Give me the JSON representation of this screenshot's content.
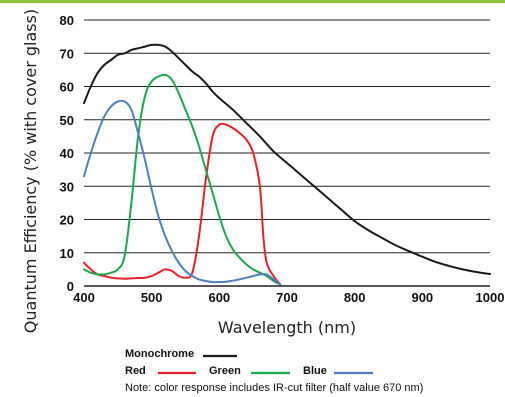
{
  "chart_data": {
    "type": "line",
    "xlabel": "Wavelength (nm)",
    "ylabel": "Quantum Efficiency (% with cover glass)",
    "xlim": [
      400,
      1000
    ],
    "ylim": [
      0,
      80
    ],
    "xticks": [
      "400",
      "500",
      "600",
      "700",
      "800",
      "900",
      "1000"
    ],
    "yticks": [
      "0",
      "10",
      "20",
      "30",
      "40",
      "50",
      "60",
      "70",
      "80"
    ],
    "grid": "horizontal",
    "series": [
      {
        "name": "Monochrome",
        "color": "#1a1a1a",
        "points": [
          [
            400,
            55
          ],
          [
            410,
            60
          ],
          [
            420,
            64
          ],
          [
            430,
            66.5
          ],
          [
            440,
            68
          ],
          [
            450,
            69.5
          ],
          [
            460,
            70
          ],
          [
            470,
            71
          ],
          [
            480,
            71.5
          ],
          [
            490,
            72
          ],
          [
            500,
            72.5
          ],
          [
            510,
            72.5
          ],
          [
            520,
            72
          ],
          [
            530,
            70.5
          ],
          [
            540,
            68.5
          ],
          [
            550,
            66.5
          ],
          [
            560,
            64.5
          ],
          [
            570,
            63
          ],
          [
            580,
            61
          ],
          [
            590,
            58.5
          ],
          [
            600,
            56.5
          ],
          [
            620,
            53
          ],
          [
            640,
            49
          ],
          [
            660,
            45
          ],
          [
            680,
            40.5
          ],
          [
            700,
            37
          ],
          [
            720,
            33.5
          ],
          [
            740,
            30
          ],
          [
            760,
            26.5
          ],
          [
            780,
            23
          ],
          [
            800,
            19.5
          ],
          [
            820,
            16.8
          ],
          [
            840,
            14.5
          ],
          [
            860,
            12.3
          ],
          [
            880,
            10.5
          ],
          [
            900,
            8.8
          ],
          [
            920,
            7.2
          ],
          [
            940,
            6
          ],
          [
            960,
            5
          ],
          [
            980,
            4.2
          ],
          [
            1000,
            3.6
          ]
        ]
      },
      {
        "name": "Red",
        "color": "#e8202a",
        "points": [
          [
            400,
            7
          ],
          [
            410,
            5
          ],
          [
            420,
            3.5
          ],
          [
            430,
            3
          ],
          [
            440,
            2.5
          ],
          [
            450,
            2.3
          ],
          [
            460,
            2.2
          ],
          [
            470,
            2.3
          ],
          [
            480,
            2.4
          ],
          [
            490,
            2.5
          ],
          [
            500,
            3
          ],
          [
            510,
            4
          ],
          [
            520,
            5
          ],
          [
            530,
            4.5
          ],
          [
            540,
            3
          ],
          [
            550,
            2.5
          ],
          [
            560,
            4
          ],
          [
            570,
            15
          ],
          [
            580,
            32
          ],
          [
            590,
            45
          ],
          [
            600,
            48.5
          ],
          [
            610,
            48.5
          ],
          [
            620,
            47.5
          ],
          [
            630,
            46
          ],
          [
            640,
            44
          ],
          [
            650,
            40
          ],
          [
            660,
            30
          ],
          [
            665,
            15
          ],
          [
            670,
            7
          ],
          [
            680,
            3
          ],
          [
            690,
            0.5
          ]
        ]
      },
      {
        "name": "Green",
        "color": "#1aa84a",
        "points": [
          [
            400,
            5
          ],
          [
            410,
            4
          ],
          [
            420,
            3.5
          ],
          [
            430,
            3.5
          ],
          [
            440,
            4
          ],
          [
            450,
            5
          ],
          [
            460,
            9
          ],
          [
            470,
            25
          ],
          [
            480,
            45
          ],
          [
            490,
            57
          ],
          [
            500,
            61.5
          ],
          [
            510,
            63
          ],
          [
            520,
            63.5
          ],
          [
            530,
            62
          ],
          [
            540,
            58
          ],
          [
            550,
            53
          ],
          [
            560,
            48
          ],
          [
            570,
            42
          ],
          [
            580,
            35
          ],
          [
            590,
            28
          ],
          [
            600,
            21
          ],
          [
            610,
            15
          ],
          [
            620,
            11
          ],
          [
            630,
            8.5
          ],
          [
            640,
            6.5
          ],
          [
            650,
            5
          ],
          [
            660,
            4
          ],
          [
            670,
            3
          ],
          [
            680,
            1.5
          ],
          [
            690,
            0.5
          ]
        ]
      },
      {
        "name": "Blue",
        "color": "#4f7fc0",
        "points": [
          [
            400,
            33
          ],
          [
            410,
            40
          ],
          [
            420,
            46
          ],
          [
            430,
            51
          ],
          [
            440,
            54
          ],
          [
            450,
            55.5
          ],
          [
            460,
            55.5
          ],
          [
            470,
            53
          ],
          [
            480,
            46
          ],
          [
            490,
            38
          ],
          [
            500,
            29
          ],
          [
            510,
            21
          ],
          [
            520,
            15
          ],
          [
            530,
            10.5
          ],
          [
            540,
            7
          ],
          [
            550,
            4.5
          ],
          [
            560,
            3
          ],
          [
            570,
            2
          ],
          [
            580,
            1.5
          ],
          [
            590,
            1.2
          ],
          [
            600,
            1.2
          ],
          [
            610,
            1.3
          ],
          [
            620,
            1.6
          ],
          [
            630,
            2
          ],
          [
            640,
            2.5
          ],
          [
            650,
            3
          ],
          [
            660,
            3.5
          ],
          [
            670,
            3.5
          ],
          [
            680,
            2
          ],
          [
            690,
            0.5
          ]
        ]
      }
    ],
    "legend": {
      "row1": [
        "Monochrome"
      ],
      "row2": [
        "Red",
        "Green",
        "Blue"
      ]
    },
    "note": "Note: color response includes IR-cut filter (half value 670 nm)"
  },
  "colors": {
    "top_bar": "#8cc63f",
    "grid": "#222222"
  }
}
